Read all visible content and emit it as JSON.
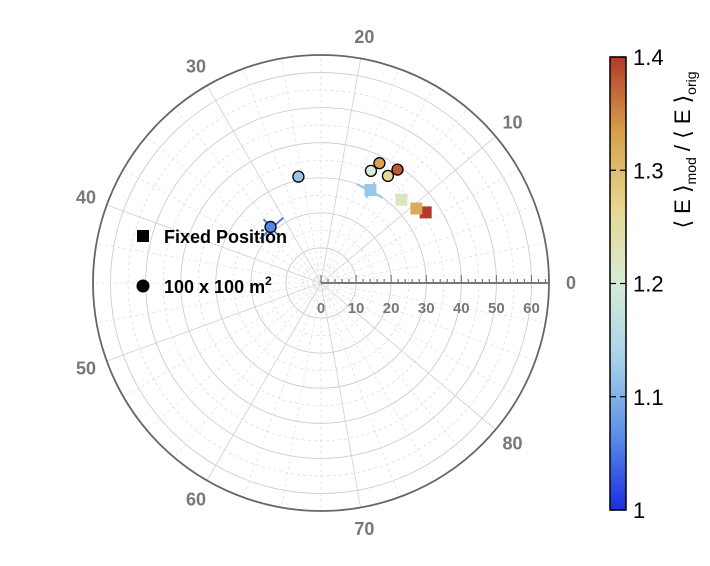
{
  "chart_data": {
    "type": "polar-scatter",
    "angle_unit": "degrees",
    "angle_ticks": [
      0,
      10,
      20,
      30,
      40,
      50,
      60,
      70,
      80
    ],
    "angle_range": [
      0,
      90
    ],
    "radius_ticks": [
      0,
      10,
      20,
      30,
      40,
      50,
      60
    ],
    "radius_range": [
      0,
      65
    ],
    "grid": true,
    "legend": {
      "position": "left",
      "entries": [
        {
          "marker": "square",
          "label": "Fixed Position"
        },
        {
          "marker": "circle",
          "label": "100 x 100 m",
          "superscript": "2"
        }
      ]
    },
    "colorbar": {
      "label_parts": [
        "⟨ E ⟩",
        "mod",
        " / ⟨ E ⟩",
        "orig"
      ],
      "range": [
        1.0,
        1.4
      ],
      "ticks": [
        "1",
        "1.1",
        "1.2",
        "1.3",
        "1.4"
      ],
      "colormap": [
        "#1a2ee0",
        "#5b8fe6",
        "#a9d2ea",
        "#d6ecd6",
        "#e7d791",
        "#d5a14c",
        "#b23a2a"
      ]
    },
    "series": [
      {
        "marker": "square",
        "points": [
          {
            "r": 36,
            "theta": 8.5,
            "value": 1.4
          },
          {
            "r": 34.5,
            "theta": 9.5,
            "value": 1.32
          },
          {
            "r": 33,
            "theta": 11.5,
            "value": 1.22
          },
          {
            "r": 30,
            "theta": 15.5,
            "value": 1.12
          }
        ]
      },
      {
        "marker": "circle",
        "points": [
          {
            "r": 39,
            "theta": 14,
            "value": 1.38
          },
          {
            "r": 38,
            "theta": 16,
            "value": 1.33
          },
          {
            "r": 36,
            "theta": 14.5,
            "value": 1.26
          },
          {
            "r": 35,
            "theta": 16.5,
            "value": 1.2
          },
          {
            "r": 31,
            "theta": 25.5,
            "value": 1.12
          },
          {
            "r": 21.5,
            "theta": 33,
            "value": 1.06
          }
        ]
      }
    ],
    "error_bars": [
      {
        "r": 30,
        "theta": 15.5,
        "dr": 2.5,
        "dtheta": 2.0,
        "color": "#8dc4e8"
      },
      {
        "r": 21.5,
        "theta": 33,
        "dr": 3.0,
        "dtheta": 3.0,
        "color": "#4a7fd6"
      }
    ]
  }
}
